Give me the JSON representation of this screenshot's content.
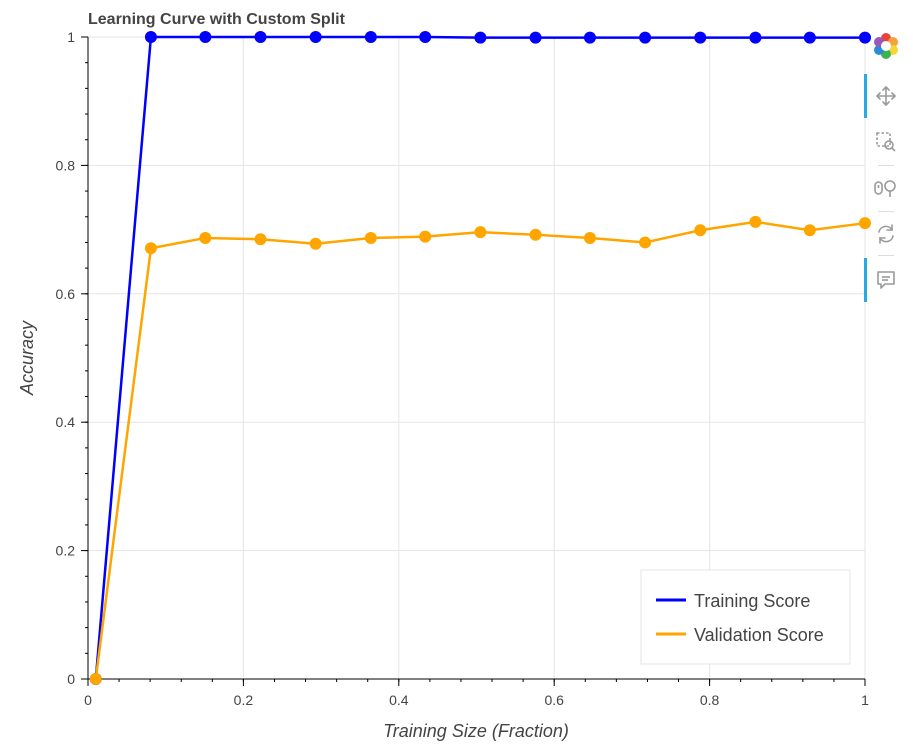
{
  "chart_data": {
    "type": "line",
    "title": "Learning Curve with Custom Split",
    "xlabel": "Training Size (Fraction)",
    "ylabel": "Accuracy",
    "xlim": [
      0,
      1
    ],
    "ylim": [
      0,
      1
    ],
    "x_ticks": [
      "0",
      "0.2",
      "0.4",
      "0.6",
      "0.8",
      "1"
    ],
    "y_ticks": [
      "0",
      "0.2",
      "0.4",
      "0.6",
      "0.8",
      "1"
    ],
    "x_tick_values": [
      0,
      0.2,
      0.4,
      0.6,
      0.8,
      1
    ],
    "y_tick_values": [
      0,
      0.2,
      0.4,
      0.6,
      0.8,
      1
    ],
    "grid": true,
    "legend_position": "bottom-right",
    "x": [
      0.01,
      0.081,
      0.151,
      0.222,
      0.293,
      0.364,
      0.434,
      0.505,
      0.576,
      0.646,
      0.717,
      0.788,
      0.859,
      0.929,
      1.0
    ],
    "series": [
      {
        "name": "Training Score",
        "color": "#0000ff",
        "values": [
          0.0,
          1.0,
          1.0,
          1.0,
          1.0,
          1.0,
          1.0,
          0.999,
          0.999,
          0.999,
          0.999,
          0.999,
          0.999,
          0.999,
          0.999
        ]
      },
      {
        "name": "Validation Score",
        "color": "#ffa500",
        "values": [
          0.0,
          0.671,
          0.687,
          0.685,
          0.678,
          0.687,
          0.689,
          0.696,
          0.692,
          0.687,
          0.68,
          0.699,
          0.712,
          0.699,
          0.71
        ]
      }
    ]
  },
  "toolbar": {
    "tools": [
      {
        "icon": "bokeh-logo-icon",
        "active": false
      },
      {
        "icon": "pan-icon",
        "active": true
      },
      {
        "icon": "box-zoom-icon",
        "active": false
      },
      {
        "icon": "wheel-zoom-icon",
        "active": false
      },
      {
        "icon": "reset-icon",
        "active": false
      },
      {
        "icon": "hover-icon",
        "active": true
      }
    ]
  }
}
